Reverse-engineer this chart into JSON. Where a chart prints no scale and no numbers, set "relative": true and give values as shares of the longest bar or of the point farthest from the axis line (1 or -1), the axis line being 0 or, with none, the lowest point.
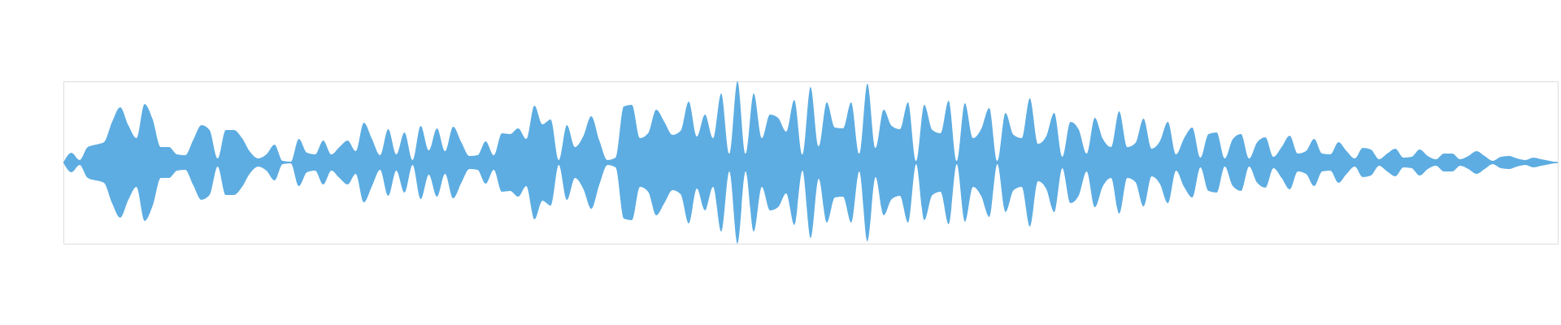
{
  "chart_data": {
    "type": "area",
    "relative": true,
    "categories": [
      null,
      null,
      null,
      null,
      null,
      null,
      null,
      null,
      null,
      null,
      null,
      null,
      null,
      null,
      null,
      null,
      null,
      null,
      null,
      null,
      null,
      null,
      null,
      null,
      null,
      null,
      null,
      null,
      null,
      null,
      null,
      null,
      null,
      null,
      null,
      null,
      null,
      null,
      null,
      null,
      null,
      null,
      null,
      null,
      null,
      null,
      null,
      null,
      null,
      null,
      null,
      null,
      null,
      null,
      null,
      null,
      null,
      null,
      null,
      null,
      null,
      null,
      null,
      null,
      null,
      null,
      null,
      null,
      null,
      null,
      null,
      null,
      null,
      null,
      null,
      null,
      null,
      null,
      null,
      null,
      null,
      null,
      null,
      null,
      null,
      null,
      null,
      null,
      null,
      null,
      null,
      null,
      null,
      null,
      null,
      null,
      null,
      null,
      null,
      null,
      null,
      null,
      null,
      null,
      null,
      null,
      null,
      null,
      null,
      null,
      null,
      null,
      null,
      null,
      null,
      null,
      null,
      null,
      null,
      null,
      null,
      null,
      null,
      null,
      null,
      null,
      null,
      null,
      null,
      null,
      null,
      null,
      null,
      null,
      null,
      null,
      null,
      null,
      null,
      null,
      null,
      null,
      null,
      null,
      null,
      null,
      null,
      null,
      null,
      null,
      null,
      null,
      null,
      null,
      null,
      null,
      null,
      null,
      null,
      null,
      null,
      null,
      null,
      null,
      null,
      null,
      null,
      null,
      null,
      null,
      null,
      null,
      null,
      null,
      null,
      null,
      null,
      null,
      null,
      null,
      null,
      null,
      null,
      null,
      null
    ],
    "series": [
      {
        "color": "#5dade2",
        "values": [
          0,
          0.12,
          0.03,
          0.19,
          0.22,
          0.25,
          0.5,
          0.68,
          0.46,
          0.3,
          0.72,
          0.53,
          0.19,
          0.19,
          0.1,
          0.09,
          0.28,
          0.46,
          0.4,
          0.05,
          0.4,
          0.4,
          0.3,
          0.13,
          0.05,
          0.1,
          0.22,
          0.02,
          0.01,
          0.29,
          0.12,
          0.1,
          0.27,
          0.1,
          0.19,
          0.27,
          0.14,
          0.49,
          0.29,
          0.09,
          0.41,
          0.1,
          0.37,
          0.03,
          0.45,
          0.15,
          0.42,
          0.14,
          0.44,
          0.25,
          0.08,
          0.09,
          0.26,
          0.09,
          0.36,
          0.35,
          0.42,
          0.29,
          0.7,
          0.47,
          0.53,
          0.03,
          0.46,
          0.19,
          0.32,
          0.57,
          0.27,
          0.03,
          0.06,
          0.69,
          0.71,
          0.3,
          0.36,
          0.65,
          0.5,
          0.34,
          0.39,
          0.75,
          0.32,
          0.59,
          0.3,
          0.85,
          0.11,
          1,
          0.11,
          0.85,
          0.3,
          0.59,
          0.55,
          0.38,
          0.77,
          0.1,
          0.93,
          0.2,
          0.74,
          0.43,
          0.42,
          0.74,
          0.11,
          0.97,
          0.18,
          0.65,
          0.45,
          0.41,
          0.74,
          0.02,
          0.71,
          0.4,
          0.36,
          0.76,
          0.02,
          0.73,
          0.3,
          0.41,
          0.67,
          0.02,
          0.61,
          0.34,
          0.3,
          0.79,
          0.23,
          0.32,
          0.61,
          0.07,
          0.5,
          0.41,
          0.11,
          0.55,
          0.29,
          0.19,
          0.63,
          0.19,
          0.24,
          0.54,
          0.17,
          0.26,
          0.5,
          0.1,
          0.3,
          0.43,
          0.06,
          0.35,
          0.37,
          0.05,
          0.29,
          0.35,
          0.05,
          0.25,
          0.31,
          0.07,
          0.19,
          0.33,
          0.11,
          0.14,
          0.29,
          0.11,
          0.1,
          0.25,
          0.14,
          0.05,
          0.18,
          0.16,
          0.04,
          0.11,
          0.17,
          0.06,
          0.07,
          0.16,
          0.08,
          0.04,
          0.11,
          0.11,
          0.04,
          0.08,
          0.14,
          0.08,
          0.02,
          0.07,
          0.08,
          0.05,
          0.03,
          0.06,
          0.04,
          0.02,
          0
        ]
      },
      {
        "color": "#5dade2",
        "values": [
          0,
          -0.12,
          -0.03,
          -0.19,
          -0.22,
          -0.25,
          -0.5,
          -0.68,
          -0.46,
          -0.3,
          -0.72,
          -0.53,
          -0.19,
          -0.19,
          -0.1,
          -0.09,
          -0.28,
          -0.46,
          -0.4,
          -0.05,
          -0.4,
          -0.4,
          -0.3,
          -0.13,
          -0.05,
          -0.1,
          -0.22,
          -0.02,
          -0.01,
          -0.29,
          -0.12,
          -0.1,
          -0.27,
          -0.1,
          -0.19,
          -0.27,
          -0.14,
          -0.49,
          -0.29,
          -0.09,
          -0.41,
          -0.1,
          -0.37,
          -0.03,
          -0.45,
          -0.15,
          -0.42,
          -0.14,
          -0.44,
          -0.25,
          -0.08,
          -0.09,
          -0.26,
          -0.09,
          -0.36,
          -0.35,
          -0.42,
          -0.29,
          -0.7,
          -0.47,
          -0.53,
          -0.03,
          -0.46,
          -0.19,
          -0.32,
          -0.57,
          -0.27,
          -0.03,
          -0.06,
          -0.69,
          -0.71,
          -0.3,
          -0.36,
          -0.65,
          -0.5,
          -0.34,
          -0.39,
          -0.75,
          -0.32,
          -0.59,
          -0.3,
          -0.85,
          -0.11,
          -1,
          -0.11,
          -0.85,
          -0.3,
          -0.59,
          -0.55,
          -0.38,
          -0.77,
          -0.1,
          -0.93,
          -0.2,
          -0.74,
          -0.43,
          -0.42,
          -0.74,
          -0.11,
          -0.97,
          -0.18,
          -0.65,
          -0.45,
          -0.41,
          -0.74,
          -0.02,
          -0.71,
          -0.4,
          -0.36,
          -0.76,
          -0.02,
          -0.73,
          -0.3,
          -0.41,
          -0.67,
          -0.02,
          -0.61,
          -0.34,
          -0.3,
          -0.79,
          -0.23,
          -0.32,
          -0.61,
          -0.07,
          -0.5,
          -0.41,
          -0.11,
          -0.55,
          -0.29,
          -0.19,
          -0.63,
          -0.19,
          -0.24,
          -0.54,
          -0.17,
          -0.26,
          -0.5,
          -0.1,
          -0.3,
          -0.43,
          -0.06,
          -0.35,
          -0.37,
          -0.05,
          -0.29,
          -0.35,
          -0.05,
          -0.25,
          -0.31,
          -0.07,
          -0.19,
          -0.33,
          -0.11,
          -0.14,
          -0.29,
          -0.11,
          -0.1,
          -0.25,
          -0.14,
          -0.05,
          -0.18,
          -0.16,
          -0.04,
          -0.11,
          -0.17,
          -0.06,
          -0.07,
          -0.16,
          -0.08,
          -0.04,
          -0.11,
          -0.11,
          -0.04,
          -0.08,
          -0.14,
          -0.08,
          -0.02,
          -0.07,
          -0.08,
          -0.05,
          -0.03,
          -0.06,
          -0.04,
          -0.02,
          0
        ]
      }
    ]
  }
}
